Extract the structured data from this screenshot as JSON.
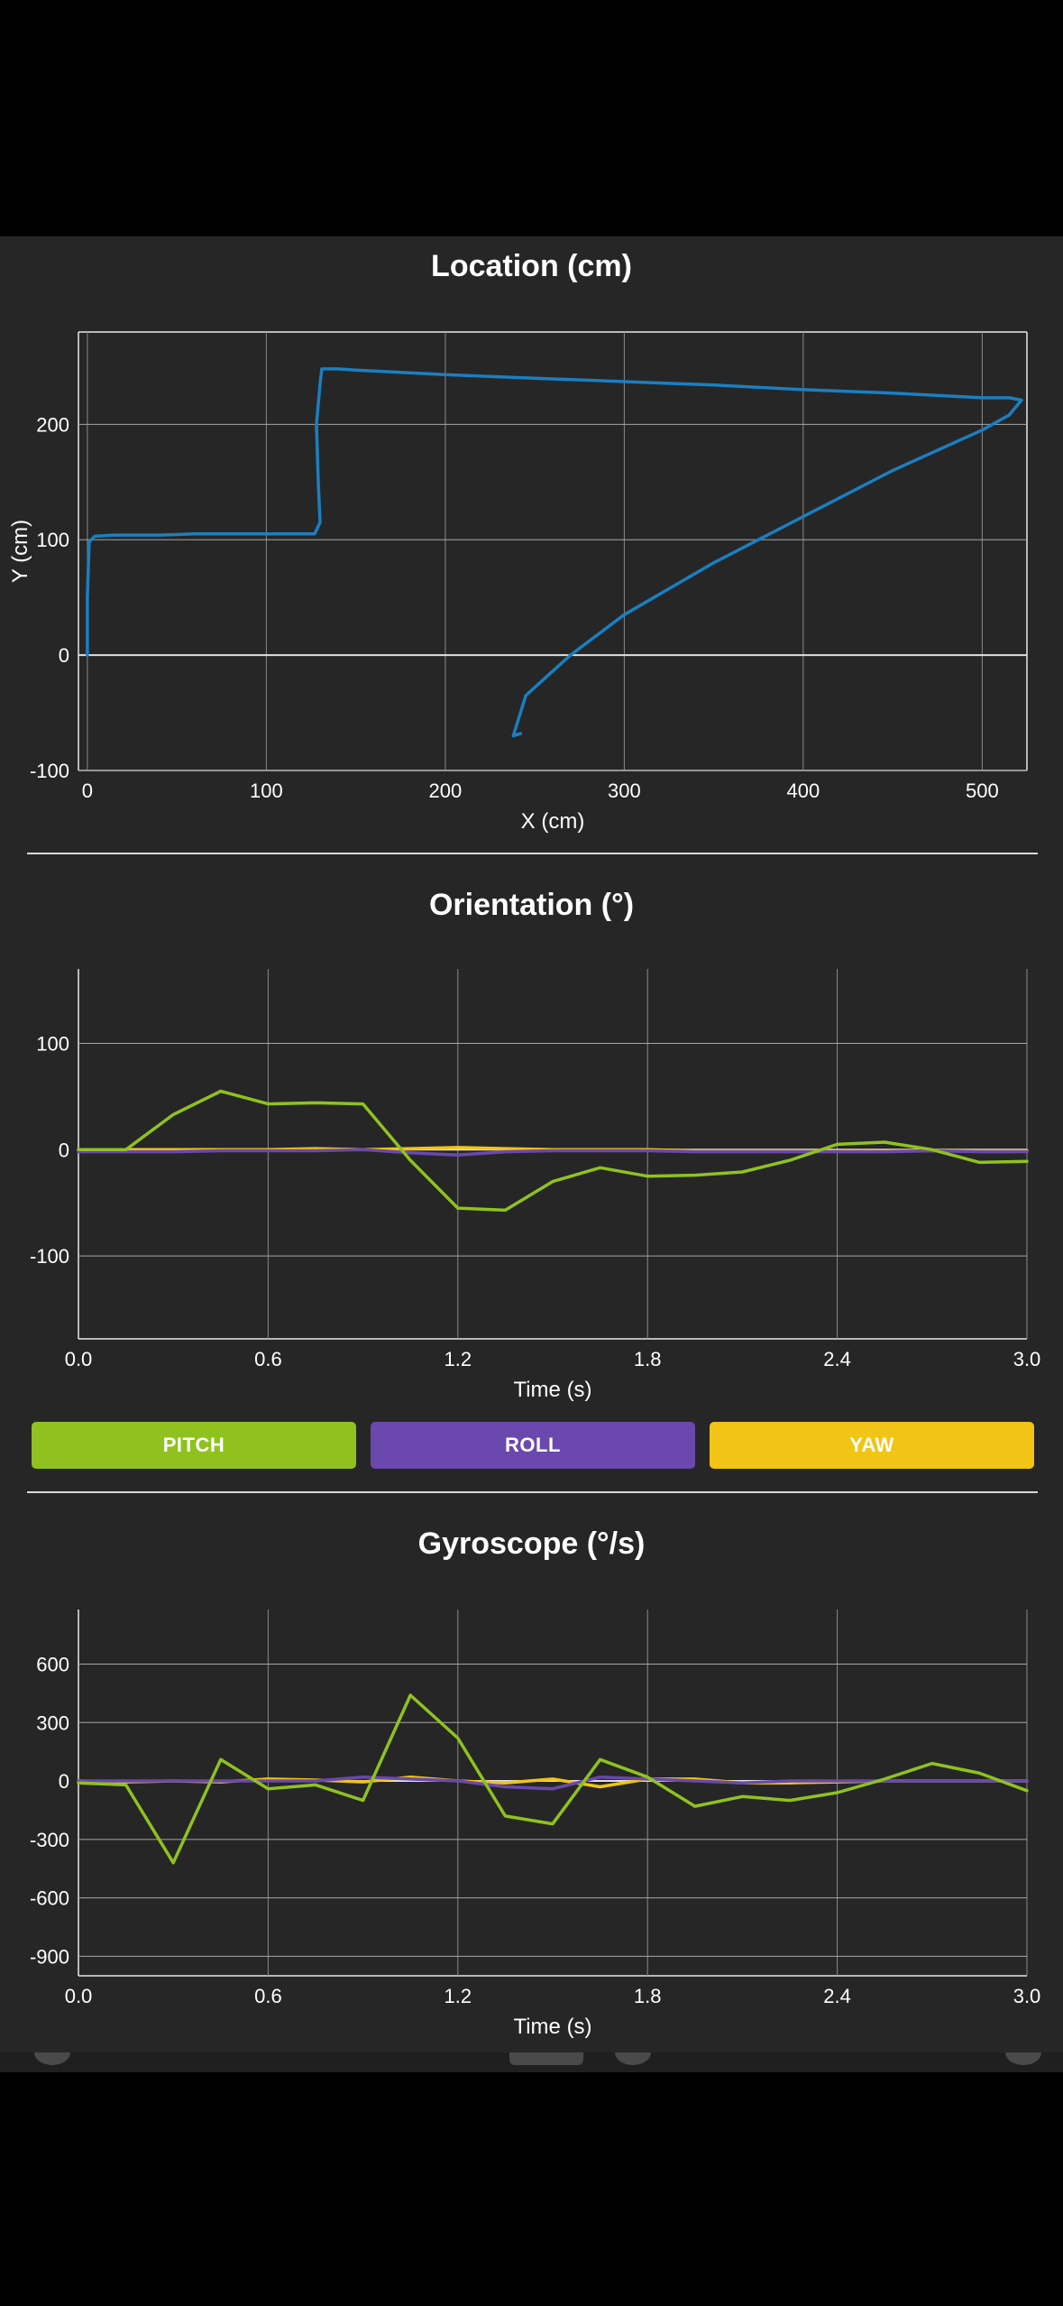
{
  "colors": {
    "location": "#1a7fc1",
    "pitch": "#8fc21f",
    "roll": "#6a48ad",
    "yaw": "#f1c415",
    "grid": "#d6d6d6",
    "background": "#262626"
  },
  "location": {
    "title": "Location (cm)",
    "chart_data": {
      "type": "line",
      "title": "Location (cm)",
      "xlabel": "X (cm)",
      "ylabel": "Y (cm)",
      "xlim": [
        -5,
        525
      ],
      "ylim": [
        -100,
        280
      ],
      "xticks": [
        0,
        100,
        200,
        300,
        400,
        500
      ],
      "yticks": [
        -100,
        0,
        100,
        200
      ],
      "grid": true,
      "series": [
        {
          "x": [
            0,
            0,
            1,
            4,
            15,
            40,
            60,
            100,
            127,
            130,
            129,
            128,
            130,
            131,
            140,
            150,
            200,
            250,
            300,
            350,
            400,
            450,
            500,
            515,
            522,
            515,
            500,
            450,
            400,
            350,
            300,
            270,
            245,
            238,
            242
          ],
          "y": [
            0,
            50,
            98,
            103,
            104,
            104,
            105,
            105,
            105,
            115,
            150,
            200,
            235,
            248,
            248,
            247,
            243,
            240,
            237,
            234,
            230,
            227,
            223,
            223,
            221,
            208,
            195,
            160,
            120,
            80,
            35,
            0,
            -35,
            -70,
            -68
          ]
        }
      ]
    }
  },
  "orientation": {
    "title": "Orientation (°)",
    "chart_data": {
      "type": "line",
      "title": "Orientation (°)",
      "xlabel": "Time (s)",
      "ylabel": "",
      "xlim": [
        0,
        3
      ],
      "ylim": [
        -178,
        170
      ],
      "xticks": [
        "0.0",
        "0.6",
        "1.2",
        "1.8",
        "2.4",
        "3.0"
      ],
      "yticks": [
        -100,
        0,
        100
      ],
      "grid": true,
      "x": [
        0,
        0.15,
        0.3,
        0.45,
        0.6,
        0.75,
        0.9,
        1.05,
        1.2,
        1.35,
        1.5,
        1.65,
        1.8,
        1.95,
        2.1,
        2.25,
        2.4,
        2.55,
        2.7,
        2.85,
        3.0
      ],
      "series": [
        {
          "name": "PITCH",
          "values": [
            0,
            0,
            33,
            55,
            43,
            44,
            43,
            -10,
            -55,
            -57,
            -30,
            -17,
            -25,
            -24,
            -21,
            -10,
            5,
            7,
            0,
            -12,
            -11
          ]
        },
        {
          "name": "ROLL",
          "values": [
            -2,
            -2,
            -2,
            -1,
            -1,
            -1,
            0,
            -3,
            -5,
            -2,
            -1,
            -1,
            -1,
            -2,
            -2,
            -2,
            -2,
            -2,
            -1,
            -2,
            -2
          ]
        },
        {
          "name": "YAW",
          "values": [
            0,
            0,
            0,
            0,
            0,
            1,
            0,
            1,
            2,
            1,
            0,
            0,
            0,
            -1,
            -1,
            -1,
            -1,
            -1,
            -1,
            -1,
            -1
          ]
        }
      ]
    },
    "legend": [
      "PITCH",
      "ROLL",
      "YAW"
    ]
  },
  "gyroscope": {
    "title": "Gyroscope (°/s)",
    "chart_data": {
      "type": "line",
      "title": "Gyroscope (°/s)",
      "xlabel": "Time (s)",
      "ylabel": "",
      "xlim": [
        0,
        3
      ],
      "ylim": [
        -1000,
        880
      ],
      "xticks": [
        "0.0",
        "0.6",
        "1.2",
        "1.8",
        "2.4",
        "3.0"
      ],
      "yticks": [
        600,
        300,
        0,
        -300,
        -600,
        -900
      ],
      "grid": true,
      "x": [
        0,
        0.15,
        0.3,
        0.45,
        0.6,
        0.75,
        0.9,
        1.05,
        1.2,
        1.35,
        1.5,
        1.65,
        1.8,
        1.95,
        2.1,
        2.25,
        2.4,
        2.55,
        2.7,
        2.85,
        3.0
      ],
      "series": [
        {
          "name": "PITCH",
          "values": [
            -10,
            -20,
            -420,
            110,
            -40,
            -20,
            -100,
            440,
            220,
            -180,
            -220,
            110,
            20,
            -130,
            -80,
            -100,
            -60,
            10,
            90,
            40,
            -50
          ]
        },
        {
          "name": "ROLL",
          "values": [
            0,
            0,
            0,
            0,
            0,
            0,
            20,
            10,
            0,
            -30,
            -40,
            20,
            10,
            0,
            -10,
            0,
            0,
            0,
            0,
            0,
            0
          ]
        },
        {
          "name": "YAW",
          "values": [
            0,
            -5,
            0,
            -5,
            10,
            5,
            -5,
            20,
            0,
            -10,
            10,
            -30,
            10,
            10,
            -10,
            -10,
            -5,
            0,
            0,
            0,
            0
          ]
        }
      ]
    }
  }
}
